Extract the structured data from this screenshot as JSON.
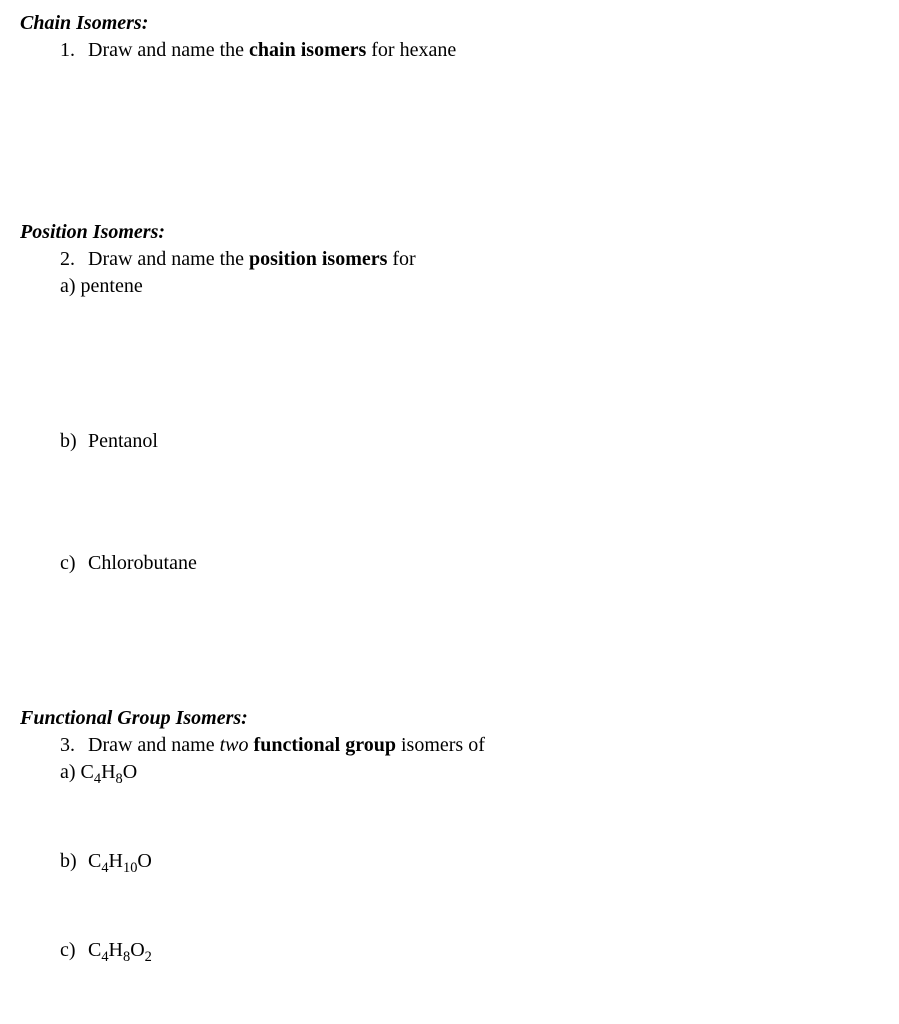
{
  "section1": {
    "heading": "Chain Isomers:",
    "q_num": "1.",
    "q_text_pre": "Draw and name the ",
    "q_text_bold": "chain isomers",
    "q_text_post": " for hexane"
  },
  "section2": {
    "heading": "Position Isomers:",
    "q_num": "2.",
    "q_text_pre": "Draw and name the ",
    "q_text_bold": "position isomers",
    "q_text_post": "  for",
    "a_label": "a)",
    "a_text": " pentene",
    "b_label": "b)",
    "b_text": "Pentanol",
    "c_label": "c)",
    "c_text": "Chlorobutane"
  },
  "section3": {
    "heading": "Functional Group Isomers:",
    "q_num": "3.",
    "q_text_pre": "Draw and name ",
    "q_text_italic": "two",
    "q_text_bold": " functional group",
    "q_text_post": " isomers of",
    "a_label": "a)",
    "a_c": "C",
    "a_s1": "4",
    "a_h": "H",
    "a_s2": "8",
    "a_o": "O",
    "b_label": "b)",
    "b_c": "C",
    "b_s1": "4",
    "b_h": "H",
    "b_s2": "10",
    "b_o": "O",
    "c_label": "c)",
    "c_c": "C",
    "c_s1": "4",
    "c_h": "H",
    "c_s2": "8",
    "c_o": "O",
    "c_s3": "2"
  }
}
